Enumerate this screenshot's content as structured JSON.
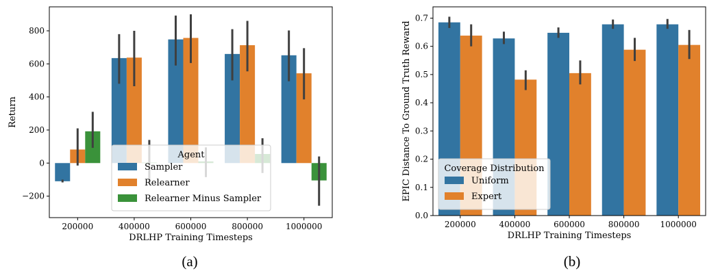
{
  "colors": {
    "Sampler": "#3274a1",
    "Relearner": "#e1812c",
    "Relearner Minus Sampler": "#3a923a",
    "Uniform": "#3274a1",
    "Expert": "#e1812c",
    "errorbar": "#3f3f3f"
  },
  "chart_data": [
    {
      "id": "a",
      "type": "bar",
      "caption": "(a)",
      "xlabel": "DRLHP Training Timesteps",
      "ylabel": "Return",
      "categories": [
        "200000",
        "400000",
        "600000",
        "800000",
        "1000000"
      ],
      "ylim": [
        -330,
        945
      ],
      "yticks": [
        -200,
        0,
        200,
        400,
        600,
        800
      ],
      "ytick_labels": [
        "−200",
        "0",
        "200",
        "400",
        "600",
        "800"
      ],
      "series": [
        {
          "name": "Sampler",
          "values": [
            -110,
            635,
            748,
            660,
            652
          ],
          "err_low": [
            -117,
            480,
            590,
            500,
            495
          ],
          "err_high": [
            -100,
            780,
            892,
            810,
            802
          ]
        },
        {
          "name": "Relearner",
          "values": [
            82,
            638,
            757,
            713,
            543
          ],
          "err_low": [
            -15,
            465,
            605,
            555,
            385
          ],
          "err_high": [
            210,
            800,
            900,
            860,
            695
          ]
        },
        {
          "name": "Relearner Minus Sampler",
          "values": [
            192,
            3,
            10,
            55,
            -105
          ],
          "err_low": [
            92,
            -130,
            -85,
            -60,
            -258
          ],
          "err_high": [
            310,
            140,
            95,
            150,
            40
          ]
        }
      ],
      "legend": {
        "title": "Agent",
        "location": "lower-right"
      },
      "grid": false
    },
    {
      "id": "b",
      "type": "bar",
      "caption": "(b)",
      "xlabel": "DRLHP Training Timesteps",
      "ylabel": "EPIC Distance To Ground Truth Reward",
      "categories": [
        "200000",
        "400000",
        "600000",
        "800000",
        "1000000"
      ],
      "ylim": [
        0,
        0.74
      ],
      "yticks": [
        0.0,
        0.1,
        0.2,
        0.3,
        0.4,
        0.5,
        0.6,
        0.7
      ],
      "ytick_labels": [
        "0.0",
        "0.1",
        "0.2",
        "0.3",
        "0.4",
        "0.5",
        "0.6",
        "0.7"
      ],
      "series": [
        {
          "name": "Uniform",
          "values": [
            0.685,
            0.628,
            0.648,
            0.678,
            0.678
          ],
          "err_low": [
            0.665,
            0.608,
            0.63,
            0.662,
            0.662
          ],
          "err_high": [
            0.705,
            0.652,
            0.667,
            0.695,
            0.697
          ]
        },
        {
          "name": "Expert",
          "values": [
            0.638,
            0.482,
            0.505,
            0.588,
            0.605
          ],
          "err_low": [
            0.6,
            0.445,
            0.465,
            0.548,
            0.555
          ],
          "err_high": [
            0.678,
            0.515,
            0.55,
            0.63,
            0.658
          ]
        }
      ],
      "legend": {
        "title": "Coverage Distribution",
        "location": "lower-left"
      },
      "grid": false
    }
  ]
}
